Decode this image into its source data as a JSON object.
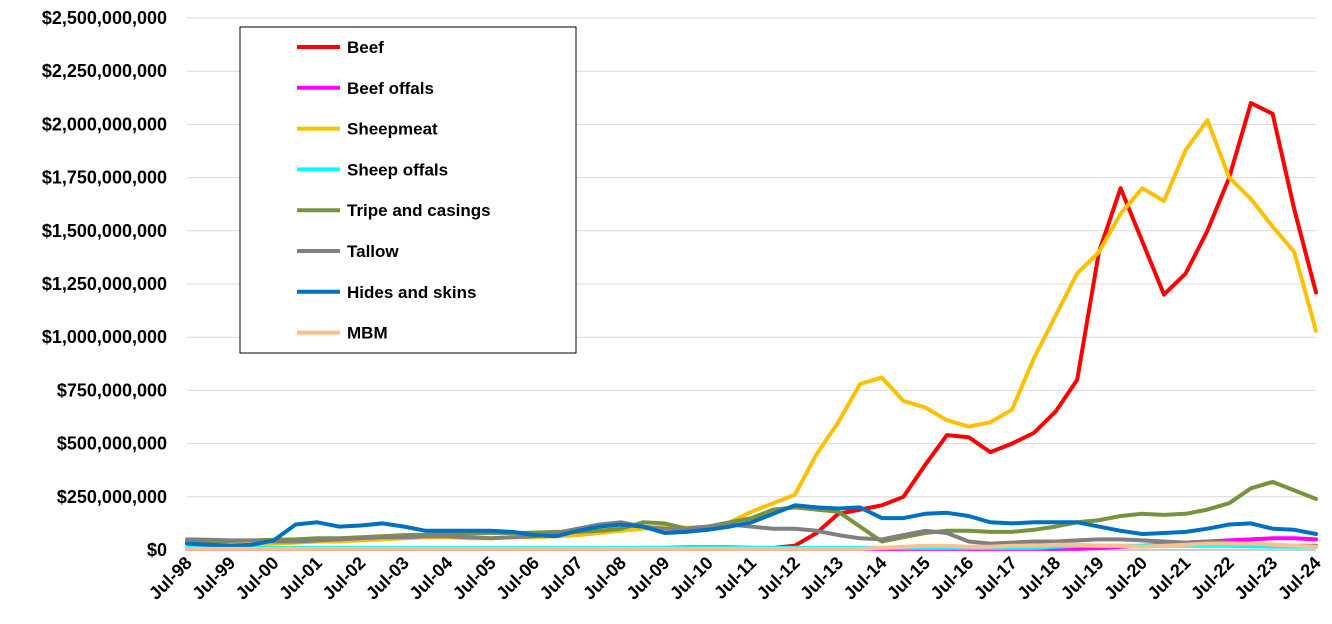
{
  "chart_data": {
    "type": "line",
    "categories": [
      "Jul-98",
      null,
      "Jul-99",
      null,
      "Jul-00",
      null,
      "Jul-01",
      null,
      "Jul-02",
      null,
      "Jul-03",
      null,
      "Jul-04",
      null,
      "Jul-05",
      null,
      "Jul-06",
      null,
      "Jul-07",
      null,
      "Jul-08",
      null,
      "Jul-09",
      null,
      "Jul-10",
      null,
      "Jul-11",
      null,
      "Jul-12",
      null,
      "Jul-13",
      null,
      "Jul-14",
      null,
      "Jul-15",
      null,
      "Jul-16",
      null,
      "Jul-17",
      null,
      "Jul-18",
      null,
      "Jul-19",
      null,
      "Jul-20",
      null,
      "Jul-21",
      null,
      "Jul-22",
      null,
      "Jul-23",
      null,
      "Jul-24"
    ],
    "series": [
      {
        "name": "Beef",
        "color": "#ff0000",
        "values": [
          5000000,
          5000000,
          5000000,
          5000000,
          5000000,
          5000000,
          5000000,
          5000000,
          5000000,
          5000000,
          5000000,
          5000000,
          5000000,
          5000000,
          5000000,
          5000000,
          5000000,
          5000000,
          5000000,
          5000000,
          8000000,
          10000000,
          10000000,
          12000000,
          12000000,
          12000000,
          10000000,
          10000000,
          20000000,
          80000000,
          170000000,
          190000000,
          210000000,
          250000000,
          400000000,
          540000000,
          530000000,
          460000000,
          500000000,
          550000000,
          650000000,
          800000000,
          1400000000,
          1700000000,
          1450000000,
          1200000000,
          1300000000,
          1500000000,
          1750000000,
          2100000000,
          2050000000,
          1600000000,
          1210000000
        ]
      },
      {
        "name": "Beef offals",
        "color": "#ff00ff",
        "values": [
          5000000,
          5000000,
          5000000,
          5000000,
          5000000,
          5000000,
          5000000,
          5000000,
          5000000,
          5000000,
          5000000,
          5000000,
          5000000,
          5000000,
          5000000,
          5000000,
          5000000,
          5000000,
          5000000,
          5000000,
          5000000,
          5000000,
          5000000,
          5000000,
          5000000,
          5000000,
          5000000,
          5000000,
          5000000,
          5000000,
          5000000,
          5000000,
          5000000,
          5000000,
          5000000,
          5000000,
          5000000,
          5000000,
          5000000,
          5000000,
          5000000,
          5000000,
          10000000,
          15000000,
          20000000,
          25000000,
          35000000,
          40000000,
          45000000,
          50000000,
          55000000,
          55000000,
          50000000
        ]
      },
      {
        "name": "Sheepmeat",
        "color": "#ffc000",
        "values": [
          30000000,
          30000000,
          25000000,
          25000000,
          30000000,
          35000000,
          40000000,
          40000000,
          45000000,
          50000000,
          55000000,
          60000000,
          60000000,
          55000000,
          55000000,
          60000000,
          60000000,
          65000000,
          70000000,
          80000000,
          90000000,
          100000000,
          110000000,
          105000000,
          110000000,
          130000000,
          180000000,
          220000000,
          260000000,
          450000000,
          600000000,
          780000000,
          810000000,
          700000000,
          670000000,
          610000000,
          580000000,
          600000000,
          660000000,
          900000000,
          1100000000,
          1300000000,
          1400000000,
          1580000000,
          1700000000,
          1640000000,
          1880000000,
          2020000000,
          1750000000,
          1650000000,
          1520000000,
          1400000000,
          1030000000
        ]
      },
      {
        "name": "Sheep offals",
        "color": "#00ffff",
        "values": [
          10000000,
          10000000,
          10000000,
          10000000,
          10000000,
          10000000,
          10000000,
          10000000,
          10000000,
          10000000,
          10000000,
          10000000,
          10000000,
          10000000,
          10000000,
          10000000,
          10000000,
          10000000,
          10000000,
          10000000,
          10000000,
          10000000,
          10000000,
          10000000,
          10000000,
          10000000,
          10000000,
          10000000,
          10000000,
          10000000,
          10000000,
          10000000,
          10000000,
          10000000,
          10000000,
          10000000,
          10000000,
          10000000,
          10000000,
          10000000,
          15000000,
          20000000,
          20000000,
          20000000,
          20000000,
          20000000,
          20000000,
          20000000,
          20000000,
          18000000,
          15000000,
          15000000,
          15000000
        ]
      },
      {
        "name": "Tripe and casings",
        "color": "#77933c",
        "values": [
          40000000,
          40000000,
          42000000,
          45000000,
          48000000,
          50000000,
          55000000,
          55000000,
          60000000,
          65000000,
          70000000,
          72000000,
          75000000,
          78000000,
          80000000,
          80000000,
          82000000,
          85000000,
          85000000,
          90000000,
          100000000,
          130000000,
          125000000,
          100000000,
          110000000,
          130000000,
          150000000,
          190000000,
          200000000,
          190000000,
          180000000,
          110000000,
          40000000,
          60000000,
          80000000,
          90000000,
          90000000,
          85000000,
          85000000,
          95000000,
          110000000,
          130000000,
          140000000,
          160000000,
          170000000,
          165000000,
          170000000,
          190000000,
          220000000,
          290000000,
          320000000,
          280000000,
          240000000
        ]
      },
      {
        "name": "Tallow",
        "color": "#808080",
        "values": [
          50000000,
          48000000,
          45000000,
          45000000,
          40000000,
          40000000,
          45000000,
          50000000,
          55000000,
          60000000,
          60000000,
          65000000,
          65000000,
          60000000,
          55000000,
          60000000,
          65000000,
          80000000,
          100000000,
          120000000,
          130000000,
          110000000,
          100000000,
          100000000,
          110000000,
          120000000,
          110000000,
          100000000,
          100000000,
          90000000,
          70000000,
          55000000,
          50000000,
          70000000,
          90000000,
          80000000,
          40000000,
          30000000,
          35000000,
          40000000,
          40000000,
          45000000,
          50000000,
          50000000,
          45000000,
          40000000,
          35000000,
          40000000,
          35000000,
          30000000,
          25000000,
          20000000,
          20000000
        ]
      },
      {
        "name": "Hides and skins",
        "color": "#0070c0",
        "values": [
          30000000,
          25000000,
          20000000,
          25000000,
          45000000,
          120000000,
          130000000,
          110000000,
          115000000,
          125000000,
          110000000,
          90000000,
          90000000,
          90000000,
          90000000,
          85000000,
          70000000,
          65000000,
          90000000,
          110000000,
          120000000,
          110000000,
          80000000,
          85000000,
          95000000,
          110000000,
          130000000,
          170000000,
          210000000,
          200000000,
          195000000,
          200000000,
          150000000,
          150000000,
          170000000,
          175000000,
          160000000,
          130000000,
          125000000,
          130000000,
          130000000,
          130000000,
          110000000,
          90000000,
          75000000,
          80000000,
          85000000,
          100000000,
          120000000,
          125000000,
          100000000,
          95000000,
          75000000
        ]
      },
      {
        "name": "MBM",
        "color": "#fac090",
        "values": [
          5000000,
          5000000,
          5000000,
          5000000,
          5000000,
          5000000,
          5000000,
          5000000,
          5000000,
          5000000,
          5000000,
          5000000,
          5000000,
          5000000,
          5000000,
          5000000,
          5000000,
          5000000,
          5000000,
          5000000,
          5000000,
          5000000,
          5000000,
          5000000,
          5000000,
          5000000,
          5000000,
          5000000,
          5000000,
          5000000,
          5000000,
          5000000,
          10000000,
          15000000,
          20000000,
          20000000,
          15000000,
          15000000,
          20000000,
          20000000,
          25000000,
          25000000,
          20000000,
          20000000,
          15000000,
          20000000,
          25000000,
          30000000,
          30000000,
          30000000,
          25000000,
          20000000,
          15000000
        ]
      }
    ],
    "ylim": [
      0,
      2500000000
    ],
    "yticks": [
      {
        "value": 0,
        "label": "$0"
      },
      {
        "value": 250000000,
        "label": "$250,000,000"
      },
      {
        "value": 500000000,
        "label": "$500,000,000"
      },
      {
        "value": 750000000,
        "label": "$750,000,000"
      },
      {
        "value": 1000000000,
        "label": "$1,000,000,000"
      },
      {
        "value": 1250000000,
        "label": "$1,250,000,000"
      },
      {
        "value": 1500000000,
        "label": "$1,500,000,000"
      },
      {
        "value": 1750000000,
        "label": "$1,750,000,000"
      },
      {
        "value": 2000000000,
        "label": "$2,000,000,000"
      },
      {
        "value": 2250000000,
        "label": "$2,250,000,000"
      },
      {
        "value": 2500000000,
        "label": "$2,500,000,000"
      }
    ],
    "grid": true,
    "legend": "upper left"
  }
}
